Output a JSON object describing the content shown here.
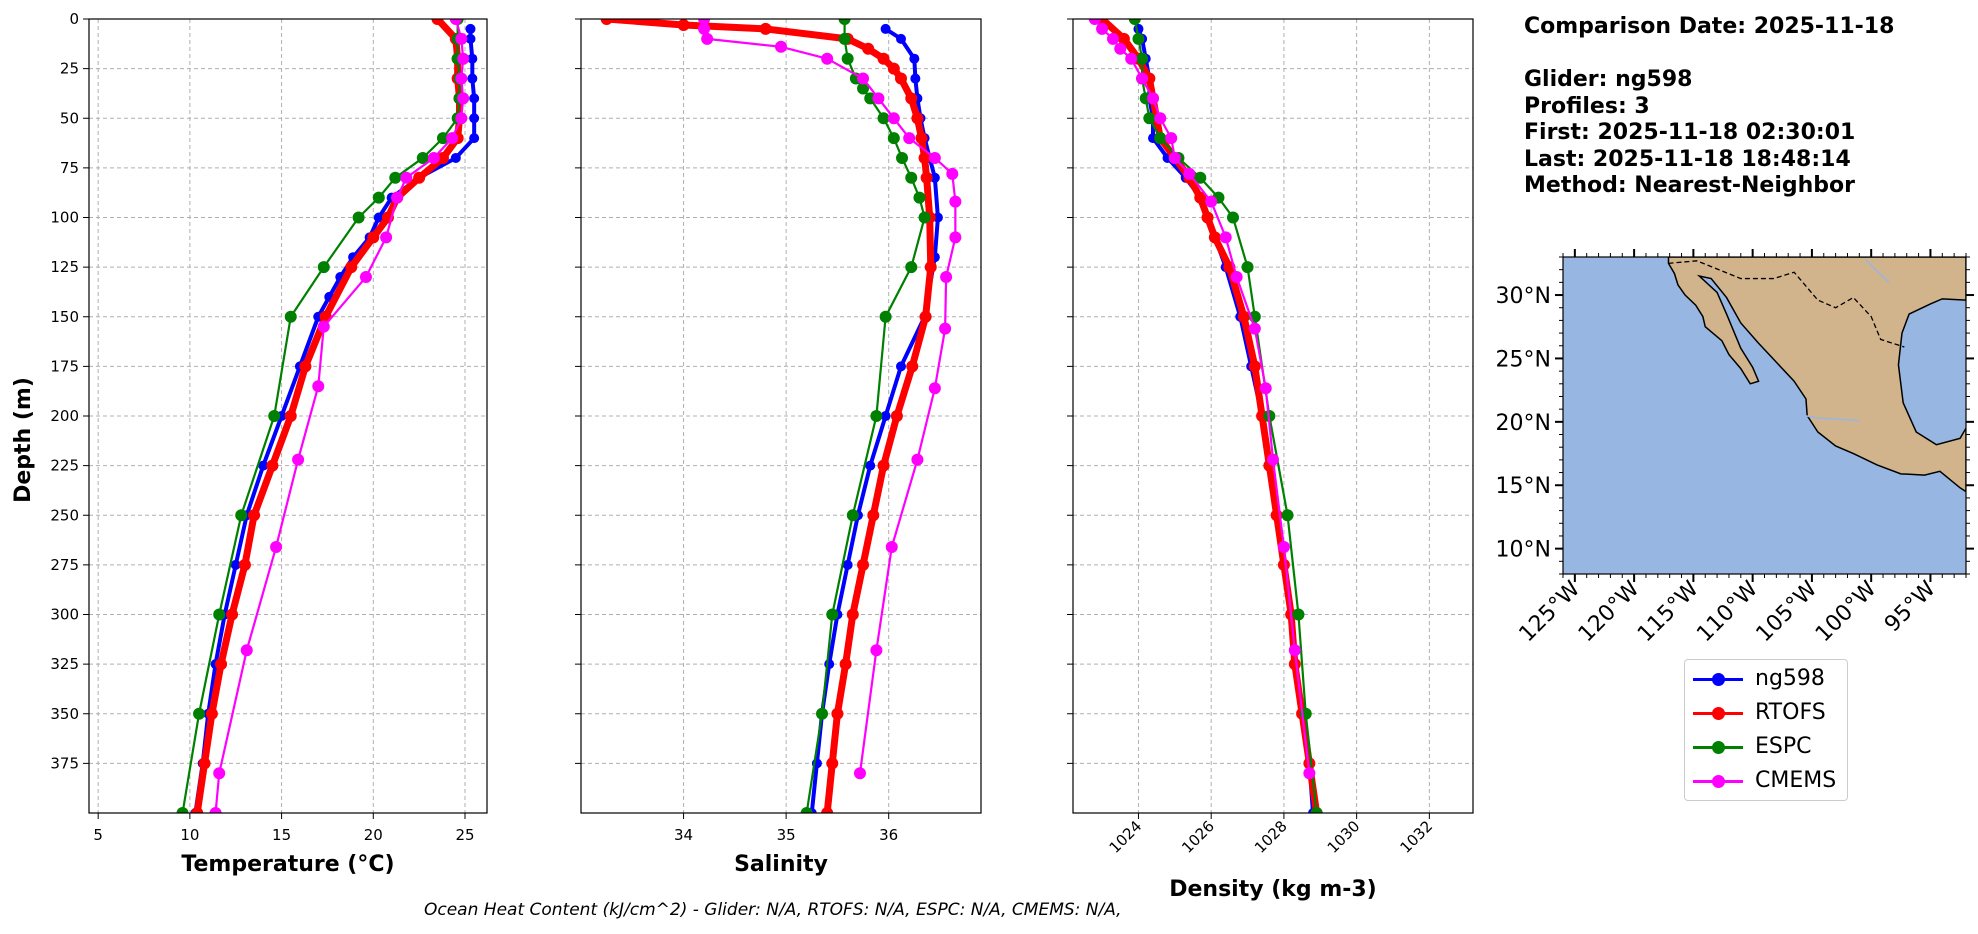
{
  "chart_data": [
    {
      "type": "line",
      "xlabel": "Temperature (°C)",
      "ylabel": "Depth (m)",
      "xlim": [
        4.5,
        26.2
      ],
      "ylim": [
        400,
        0
      ],
      "y_inverted": true,
      "grid": true,
      "xticks": [
        "5",
        "10",
        "15",
        "20",
        "25"
      ],
      "yticks": [
        "0",
        "25",
        "50",
        "75",
        "100",
        "125",
        "150",
        "175",
        "200",
        "225",
        "250",
        "275",
        "300",
        "325",
        "350",
        "375"
      ],
      "series": [
        {
          "name": "ng598",
          "color": "#0000ff",
          "depth": [
            5,
            10,
            20,
            30,
            40,
            50,
            60,
            70,
            80,
            90,
            100,
            110,
            120,
            130,
            140,
            150,
            175,
            200,
            225,
            250,
            275,
            300,
            325,
            350,
            375,
            400
          ],
          "values": [
            25.3,
            25.3,
            25.4,
            25.4,
            25.5,
            25.5,
            25.5,
            24.5,
            22.5,
            21.0,
            20.3,
            19.8,
            18.9,
            18.2,
            17.6,
            17.0,
            16.0,
            15.0,
            14.0,
            13.1,
            12.5,
            11.9,
            11.4,
            11.0,
            10.7,
            10.3
          ]
        },
        {
          "name": "RTOFS",
          "color": "#ff0000",
          "depth": [
            0,
            10,
            20,
            30,
            40,
            50,
            60,
            70,
            80,
            90,
            100,
            110,
            125,
            150,
            175,
            200,
            225,
            250,
            275,
            300,
            325,
            350,
            375,
            400
          ],
          "values": [
            23.5,
            24.5,
            24.6,
            24.6,
            24.7,
            24.7,
            24.6,
            23.8,
            22.5,
            21.3,
            20.8,
            20.0,
            18.8,
            17.4,
            16.3,
            15.5,
            14.5,
            13.5,
            13.0,
            12.3,
            11.7,
            11.2,
            10.8,
            10.4
          ]
        },
        {
          "name": "ESPC",
          "color": "#008000",
          "depth": [
            0,
            10,
            20,
            30,
            40,
            50,
            60,
            70,
            80,
            90,
            100,
            125,
            150,
            200,
            250,
            300,
            350,
            400
          ],
          "values": [
            24.6,
            24.6,
            24.6,
            24.7,
            24.7,
            24.6,
            23.8,
            22.7,
            21.2,
            20.3,
            19.2,
            17.3,
            15.5,
            14.6,
            12.8,
            11.6,
            10.5,
            9.6
          ]
        },
        {
          "name": "CMEMS",
          "color": "#ff00ff",
          "depth": [
            0,
            10,
            20,
            30,
            40,
            50,
            60,
            70,
            80,
            90,
            110,
            130,
            155,
            185,
            222,
            266,
            318,
            380,
            400
          ],
          "values": [
            24.5,
            24.8,
            24.9,
            24.8,
            24.9,
            24.8,
            24.3,
            23.3,
            21.8,
            21.3,
            20.7,
            19.6,
            17.3,
            17.0,
            15.9,
            14.7,
            13.1,
            11.6,
            11.4
          ]
        }
      ]
    },
    {
      "type": "line",
      "xlabel": "Salinity",
      "xlim": [
        33.0,
        36.9
      ],
      "ylim": [
        400,
        0
      ],
      "y_inverted": true,
      "grid": true,
      "xticks": [
        "34",
        "35",
        "36"
      ],
      "series": [
        {
          "name": "ng598",
          "color": "#0000ff",
          "depth": [
            5,
            10,
            20,
            30,
            40,
            50,
            60,
            70,
            80,
            100,
            120,
            150,
            175,
            200,
            225,
            250,
            275,
            300,
            325,
            350,
            375,
            400
          ],
          "values": [
            35.97,
            36.12,
            36.25,
            36.26,
            36.28,
            36.31,
            36.35,
            36.4,
            36.45,
            36.48,
            36.45,
            36.35,
            36.12,
            35.97,
            35.82,
            35.7,
            35.6,
            35.5,
            35.42,
            35.35,
            35.3,
            35.25
          ]
        },
        {
          "name": "RTOFS",
          "color": "#ff0000",
          "depth": [
            0,
            3,
            5,
            10,
            15,
            20,
            25,
            30,
            40,
            50,
            60,
            70,
            80,
            100,
            125,
            150,
            175,
            200,
            225,
            250,
            275,
            300,
            325,
            350,
            375,
            400
          ],
          "values": [
            33.25,
            34.0,
            34.8,
            35.6,
            35.8,
            35.95,
            36.05,
            36.12,
            36.22,
            36.28,
            36.32,
            36.35,
            36.37,
            36.4,
            36.41,
            36.36,
            36.23,
            36.08,
            35.95,
            35.85,
            35.75,
            35.65,
            35.58,
            35.5,
            35.45,
            35.4
          ]
        },
        {
          "name": "ESPC",
          "color": "#008000",
          "depth": [
            0,
            10,
            20,
            30,
            35,
            40,
            50,
            60,
            70,
            80,
            90,
            100,
            125,
            150,
            200,
            250,
            300,
            350,
            400
          ],
          "values": [
            35.57,
            35.57,
            35.6,
            35.68,
            35.75,
            35.82,
            35.95,
            36.05,
            36.13,
            36.22,
            36.3,
            36.35,
            36.22,
            35.97,
            35.88,
            35.65,
            35.45,
            35.35,
            35.2
          ]
        },
        {
          "name": "CMEMS",
          "color": "#ff00ff",
          "depth": [
            0,
            5,
            10,
            14,
            20,
            30,
            40,
            50,
            60,
            70,
            78,
            92,
            110,
            130,
            156,
            186,
            222,
            266,
            318,
            380
          ],
          "values": [
            34.2,
            34.2,
            34.23,
            34.95,
            35.4,
            35.75,
            35.9,
            36.05,
            36.2,
            36.45,
            36.62,
            36.65,
            36.65,
            36.56,
            36.55,
            36.45,
            36.28,
            36.03,
            35.88,
            35.72
          ]
        }
      ]
    },
    {
      "type": "line",
      "xlabel": "Density (kg m-3)",
      "xlim": [
        1022.2,
        1033.2
      ],
      "ylim": [
        400,
        0
      ],
      "y_inverted": true,
      "grid": true,
      "xticks": [
        "1024",
        "1026",
        "1028",
        "1030",
        "1032"
      ],
      "series": [
        {
          "name": "ng598",
          "color": "#0000ff",
          "depth": [
            5,
            10,
            20,
            30,
            40,
            50,
            60,
            70,
            80,
            90,
            100,
            110,
            125,
            150,
            175,
            200,
            225,
            250,
            275,
            300,
            325,
            350,
            375,
            400
          ],
          "values": [
            1024.0,
            1024.1,
            1024.2,
            1024.3,
            1024.3,
            1024.4,
            1024.4,
            1024.8,
            1025.3,
            1025.7,
            1025.9,
            1026.1,
            1026.4,
            1026.8,
            1027.1,
            1027.4,
            1027.6,
            1027.8,
            1028.0,
            1028.2,
            1028.3,
            1028.5,
            1028.7,
            1028.8
          ]
        },
        {
          "name": "RTOFS",
          "color": "#ff0000",
          "depth": [
            0,
            10,
            20,
            30,
            40,
            50,
            60,
            70,
            80,
            90,
            100,
            110,
            125,
            150,
            175,
            200,
            225,
            250,
            275,
            300,
            325,
            350,
            375,
            400
          ],
          "values": [
            1023.0,
            1023.6,
            1024.0,
            1024.3,
            1024.4,
            1024.5,
            1024.6,
            1025.0,
            1025.4,
            1025.7,
            1025.9,
            1026.1,
            1026.5,
            1026.9,
            1027.2,
            1027.4,
            1027.6,
            1027.8,
            1028.0,
            1028.2,
            1028.3,
            1028.5,
            1028.7,
            1028.9
          ]
        },
        {
          "name": "ESPC",
          "color": "#008000",
          "depth": [
            0,
            10,
            20,
            30,
            40,
            50,
            60,
            70,
            80,
            90,
            100,
            125,
            150,
            200,
            250,
            300,
            350,
            400
          ],
          "values": [
            1023.9,
            1024.0,
            1024.1,
            1024.1,
            1024.2,
            1024.3,
            1024.6,
            1025.1,
            1025.7,
            1026.2,
            1026.6,
            1027.0,
            1027.2,
            1027.6,
            1028.1,
            1028.4,
            1028.6,
            1028.9
          ]
        },
        {
          "name": "CMEMS",
          "color": "#ff00ff",
          "depth": [
            0,
            5,
            10,
            15,
            20,
            30,
            40,
            50,
            60,
            70,
            78,
            92,
            110,
            130,
            156,
            186,
            222,
            266,
            318,
            380
          ],
          "values": [
            1022.8,
            1023.0,
            1023.3,
            1023.5,
            1023.8,
            1024.1,
            1024.4,
            1024.6,
            1024.9,
            1025.0,
            1025.4,
            1026.0,
            1026.4,
            1026.7,
            1027.2,
            1027.5,
            1027.7,
            1028.0,
            1028.3,
            1028.7
          ]
        }
      ]
    }
  ],
  "info": {
    "comparison_date": "Comparison Date: 2025-11-18",
    "glider": "Glider: ng598",
    "profiles": "Profiles: 3",
    "first": "First: 2025-11-18 02:30:01",
    "last": "Last: 2025-11-18 18:48:14",
    "method": "Method: Nearest-Neighbor"
  },
  "map": {
    "lat_ticks": [
      "30°N",
      "25°N",
      "20°N",
      "15°N",
      "10°N"
    ],
    "lon_ticks": [
      "125°W",
      "120°W",
      "115°W",
      "110°W",
      "105°W",
      "100°W",
      "95°W"
    ],
    "lat_range": [
      8,
      33
    ],
    "lon_range": [
      -126,
      -92
    ],
    "ocean_color": "#97b6e1",
    "land_color": "#d2b48c"
  },
  "legend": [
    {
      "label": "ng598",
      "color": "#0000ff"
    },
    {
      "label": "RTOFS",
      "color": "#ff0000"
    },
    {
      "label": "ESPC",
      "color": "#008000"
    },
    {
      "label": "CMEMS",
      "color": "#ff00ff"
    }
  ],
  "footer": "Ocean Heat Content (kJ/cm^2) - Glider: N/A,  RTOFS: N/A,  ESPC: N/A,  CMEMS: N/A,"
}
